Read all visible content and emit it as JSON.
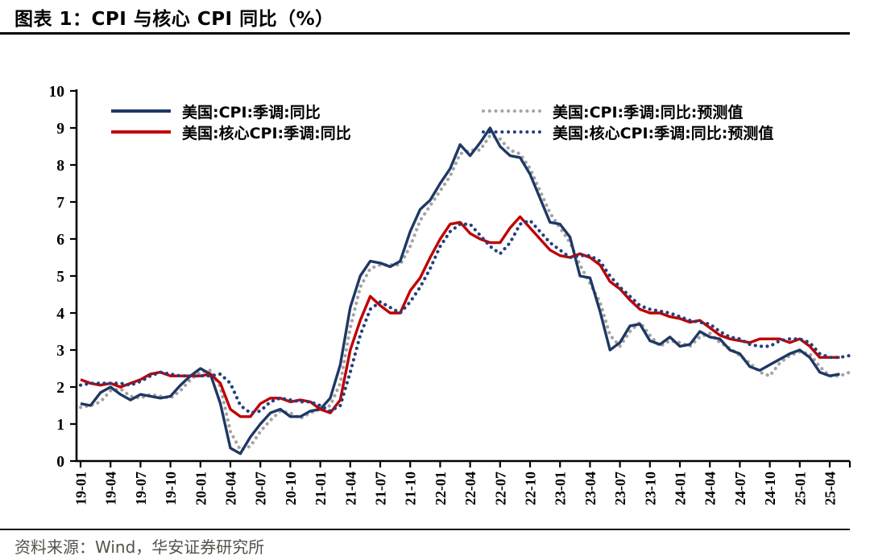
{
  "header": {
    "title": "图表 1：CPI 与核心 CPI 同比（%）"
  },
  "footer": {
    "source": "资料来源：Wind，华安证券研究所"
  },
  "colors": {
    "axis": "#000000",
    "cpi_line": "#1f3864",
    "core_cpi_line": "#c00000",
    "cpi_forecast_dots": "#a3a3a3",
    "core_cpi_forecast_dots": "#233f7f",
    "source_text": "#55524a"
  },
  "chart_data": {
    "type": "line",
    "title": "图表 1：CPI 与核心 CPI 同比（%）",
    "xlabel": "",
    "ylabel": "",
    "ylim": [
      0,
      10
    ],
    "yticks": [
      0,
      1,
      2,
      3,
      4,
      5,
      6,
      7,
      8,
      9,
      10
    ],
    "grid": false,
    "legend_position": "top",
    "x_start": "2019-01",
    "x_step_months": 1,
    "xtick_every_months": 3,
    "xtick_labels": [
      "19-01",
      "19-04",
      "19-07",
      "19-10",
      "20-01",
      "20-04",
      "20-07",
      "20-10",
      "21-01",
      "21-04",
      "21-07",
      "21-10",
      "22-01",
      "22-04",
      "22-07",
      "22-10",
      "23-01",
      "23-04",
      "23-07",
      "23-10",
      "24-01",
      "24-04",
      "24-07",
      "24-10",
      "25-01",
      "25-04"
    ],
    "series": [
      {
        "name": "美国:CPI:季调:同比",
        "style": "solid",
        "color": "#1f3864",
        "values": [
          1.55,
          1.5,
          1.85,
          2.0,
          1.8,
          1.65,
          1.8,
          1.75,
          1.7,
          1.75,
          2.05,
          2.3,
          2.5,
          2.35,
          1.55,
          0.35,
          0.2,
          0.65,
          1.0,
          1.3,
          1.4,
          1.2,
          1.2,
          1.35,
          1.4,
          1.7,
          2.6,
          4.15,
          5.0,
          5.4,
          5.35,
          5.25,
          5.4,
          6.2,
          6.8,
          7.05,
          7.5,
          7.9,
          8.55,
          8.25,
          8.6,
          9.0,
          8.5,
          8.25,
          8.2,
          7.75,
          7.1,
          6.45,
          6.4,
          6.05,
          5.0,
          4.95,
          4.05,
          3.0,
          3.2,
          3.65,
          3.7,
          3.25,
          3.15,
          3.35,
          3.1,
          3.15,
          3.5,
          3.35,
          3.3,
          3.0,
          2.9,
          2.55,
          2.45,
          2.6,
          2.75,
          2.9,
          3.0,
          2.8,
          2.4,
          2.3,
          2.35
        ]
      },
      {
        "name": "美国:核心CPI:季调:同比",
        "style": "solid",
        "color": "#c00000",
        "values": [
          2.2,
          2.1,
          2.05,
          2.1,
          2.0,
          2.1,
          2.2,
          2.35,
          2.4,
          2.3,
          2.3,
          2.3,
          2.3,
          2.35,
          2.1,
          1.4,
          1.2,
          1.2,
          1.55,
          1.7,
          1.7,
          1.6,
          1.65,
          1.6,
          1.4,
          1.3,
          1.65,
          3.0,
          3.8,
          4.45,
          4.2,
          4.0,
          4.0,
          4.6,
          4.95,
          5.5,
          6.0,
          6.4,
          6.45,
          6.15,
          6.0,
          5.9,
          5.9,
          6.3,
          6.6,
          6.3,
          6.0,
          5.7,
          5.55,
          5.5,
          5.6,
          5.5,
          5.3,
          4.85,
          4.65,
          4.35,
          4.1,
          4.0,
          4.0,
          3.9,
          3.85,
          3.75,
          3.8,
          3.6,
          3.4,
          3.3,
          3.25,
          3.2,
          3.3,
          3.3,
          3.3,
          3.2,
          3.3,
          3.1,
          2.8,
          2.8,
          2.8
        ]
      },
      {
        "name": "美国:CPI:季调:同比:预测值",
        "style": "dotted",
        "color": "#a3a3a3",
        "values": [
          1.45,
          1.5,
          1.6,
          1.9,
          1.95,
          1.75,
          1.7,
          1.8,
          1.75,
          1.7,
          1.9,
          2.2,
          2.4,
          2.45,
          2.0,
          0.8,
          0.3,
          0.4,
          0.8,
          1.1,
          1.35,
          1.3,
          1.15,
          1.3,
          1.4,
          1.5,
          2.1,
          3.6,
          4.7,
          5.2,
          5.3,
          5.3,
          5.3,
          5.8,
          6.5,
          6.9,
          7.3,
          7.7,
          8.3,
          8.4,
          8.4,
          8.8,
          8.7,
          8.4,
          8.3,
          7.9,
          7.3,
          6.7,
          6.3,
          5.9,
          5.3,
          4.8,
          4.3,
          3.4,
          3.1,
          3.5,
          3.75,
          3.4,
          3.1,
          3.25,
          3.2,
          3.1,
          3.35,
          3.45,
          3.2,
          3.05,
          2.85,
          2.65,
          2.4,
          2.3,
          2.65,
          2.85,
          2.95,
          2.9,
          2.55,
          2.3,
          2.3,
          2.4
        ]
      },
      {
        "name": "美国:核心CPI:季调:同比:预测值",
        "style": "dotted",
        "color": "#233f7f",
        "values": [
          2.05,
          2.1,
          2.1,
          2.1,
          2.1,
          2.05,
          2.15,
          2.3,
          2.4,
          2.35,
          2.3,
          2.3,
          2.3,
          2.3,
          2.35,
          2.1,
          1.5,
          1.3,
          1.35,
          1.6,
          1.7,
          1.65,
          1.6,
          1.6,
          1.5,
          1.35,
          1.5,
          2.4,
          3.4,
          4.1,
          4.3,
          4.15,
          4.0,
          4.3,
          4.7,
          5.2,
          5.8,
          6.2,
          6.4,
          6.4,
          6.1,
          5.8,
          5.6,
          5.9,
          6.4,
          6.5,
          6.2,
          5.9,
          5.7,
          5.5,
          5.55,
          5.55,
          5.4,
          5.0,
          4.7,
          4.45,
          4.2,
          4.1,
          4.05,
          4.0,
          3.9,
          3.8,
          3.75,
          3.7,
          3.5,
          3.35,
          3.3,
          3.15,
          3.1,
          3.1,
          3.25,
          3.3,
          3.3,
          3.2,
          2.9,
          2.8,
          2.8,
          2.85
        ]
      }
    ]
  }
}
